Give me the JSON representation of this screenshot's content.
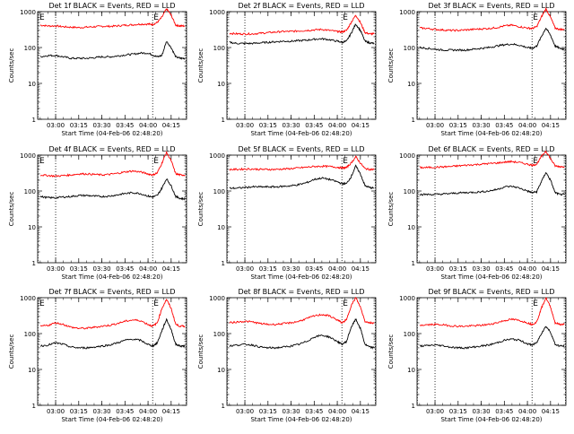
{
  "axis_common": {
    "ylabel": "Counts/sec",
    "xlabel": "Start Time (04-Feb-06 02:48:20)",
    "y_ticks": [
      "1",
      "10",
      "100",
      "1000"
    ],
    "x_ticks": [
      "03:00",
      "03:15",
      "03:30",
      "03:45",
      "04:00",
      "04:15"
    ],
    "ylim": [
      1,
      1000
    ],
    "y_scale": "log",
    "xlim": [
      "02:48:20",
      "04:25"
    ],
    "grid": false
  },
  "colors": {
    "events": "#000000",
    "lld": "#ff0000",
    "markers": "#000000"
  },
  "chart_data": [
    {
      "type": "line",
      "title": "Det 1f BLACK = Events, RED = LLD",
      "marker_labels": [
        "E",
        "E"
      ],
      "show_xaxis_labels": true,
      "x": [
        "02:50",
        "02:55",
        "03:00",
        "03:05",
        "03:10",
        "03:15",
        "03:20",
        "03:25",
        "03:30",
        "03:35",
        "03:40",
        "03:45",
        "03:50",
        "03:55",
        "04:00",
        "04:03",
        "04:06",
        "04:09",
        "04:12",
        "04:15",
        "04:18",
        "04:21",
        "04:24"
      ],
      "series": [
        {
          "name": "LLD",
          "color": "#ff0000",
          "values": [
            420,
            400,
            400,
            380,
            370,
            360,
            370,
            380,
            390,
            390,
            400,
            420,
            430,
            450,
            450,
            440,
            500,
            700,
            1200,
            800,
            420,
            400,
            400
          ]
        },
        {
          "name": "Events",
          "color": "#000000",
          "values": [
            55,
            60,
            60,
            55,
            50,
            50,
            50,
            52,
            55,
            55,
            58,
            62,
            65,
            70,
            70,
            62,
            55,
            60,
            150,
            100,
            55,
            50,
            50
          ]
        }
      ]
    },
    {
      "type": "line",
      "title": "Det 2f BLACK = Events, RED = LLD",
      "marker_labels": [
        "",
        "E"
      ],
      "show_xaxis_labels": true,
      "x": [
        "02:50",
        "02:55",
        "03:00",
        "03:05",
        "03:10",
        "03:15",
        "03:20",
        "03:25",
        "03:30",
        "03:35",
        "03:40",
        "03:45",
        "03:50",
        "03:55",
        "04:00",
        "04:03",
        "04:06",
        "04:09",
        "04:12",
        "04:15",
        "04:18",
        "04:21",
        "04:24"
      ],
      "series": [
        {
          "name": "LLD",
          "color": "#ff0000",
          "values": [
            250,
            240,
            240,
            240,
            250,
            260,
            270,
            280,
            280,
            290,
            300,
            310,
            320,
            300,
            280,
            270,
            300,
            500,
            800,
            500,
            260,
            240,
            240
          ]
        },
        {
          "name": "Events",
          "color": "#000000",
          "values": [
            140,
            130,
            130,
            130,
            135,
            140,
            145,
            150,
            150,
            155,
            160,
            170,
            175,
            165,
            150,
            140,
            150,
            250,
            450,
            300,
            150,
            135,
            130
          ]
        }
      ]
    },
    {
      "type": "line",
      "title": "Det 3f BLACK = Events, RED = LLD",
      "marker_labels": [
        "",
        "E"
      ],
      "show_xaxis_labels": true,
      "x": [
        "02:50",
        "02:55",
        "03:00",
        "03:05",
        "03:10",
        "03:15",
        "03:20",
        "03:25",
        "03:30",
        "03:35",
        "03:40",
        "03:45",
        "03:50",
        "03:55",
        "04:00",
        "04:03",
        "04:06",
        "04:09",
        "04:12",
        "04:15",
        "04:18",
        "04:21",
        "04:24"
      ],
      "series": [
        {
          "name": "LLD",
          "color": "#ff0000",
          "values": [
            350,
            340,
            320,
            310,
            300,
            300,
            310,
            320,
            330,
            340,
            360,
            400,
            420,
            380,
            350,
            340,
            380,
            700,
            1200,
            700,
            350,
            320,
            320
          ]
        },
        {
          "name": "Events",
          "color": "#000000",
          "values": [
            100,
            95,
            90,
            85,
            85,
            85,
            85,
            90,
            95,
            100,
            110,
            120,
            125,
            115,
            100,
            95,
            110,
            200,
            350,
            220,
            110,
            95,
            90
          ]
        }
      ]
    },
    {
      "type": "line",
      "title": "Det 4f BLACK = Events, RED = LLD",
      "marker_labels": [
        "E",
        "E"
      ],
      "show_xaxis_labels": true,
      "x": [
        "02:50",
        "02:55",
        "03:00",
        "03:05",
        "03:10",
        "03:15",
        "03:20",
        "03:25",
        "03:30",
        "03:35",
        "03:40",
        "03:45",
        "03:50",
        "03:55",
        "04:00",
        "04:03",
        "04:06",
        "04:09",
        "04:12",
        "04:15",
        "04:18",
        "04:21",
        "04:24"
      ],
      "series": [
        {
          "name": "LLD",
          "color": "#ff0000",
          "values": [
            280,
            270,
            260,
            270,
            280,
            300,
            300,
            290,
            280,
            290,
            310,
            340,
            360,
            340,
            300,
            280,
            320,
            600,
            1200,
            700,
            300,
            280,
            280
          ]
        },
        {
          "name": "Events",
          "color": "#000000",
          "values": [
            70,
            65,
            65,
            68,
            70,
            75,
            75,
            72,
            70,
            72,
            78,
            85,
            90,
            85,
            72,
            68,
            75,
            120,
            220,
            140,
            70,
            62,
            60
          ]
        }
      ]
    },
    {
      "type": "line",
      "title": "Det 5f BLACK = Events, RED = LLD",
      "marker_labels": [
        "",
        "E"
      ],
      "show_xaxis_labels": true,
      "x": [
        "02:50",
        "02:55",
        "03:00",
        "03:05",
        "03:10",
        "03:15",
        "03:20",
        "03:25",
        "03:30",
        "03:35",
        "03:40",
        "03:45",
        "03:50",
        "03:55",
        "04:00",
        "04:03",
        "04:06",
        "04:09",
        "04:12",
        "04:15",
        "04:18",
        "04:21",
        "04:24"
      ],
      "series": [
        {
          "name": "LLD",
          "color": "#ff0000",
          "values": [
            400,
            400,
            410,
            410,
            400,
            400,
            400,
            410,
            420,
            440,
            460,
            480,
            490,
            480,
            460,
            440,
            450,
            600,
            900,
            600,
            420,
            400,
            400
          ]
        },
        {
          "name": "Events",
          "color": "#000000",
          "values": [
            120,
            120,
            125,
            130,
            130,
            130,
            130,
            135,
            140,
            150,
            170,
            210,
            230,
            210,
            180,
            160,
            160,
            250,
            500,
            300,
            140,
            125,
            120
          ]
        }
      ]
    },
    {
      "type": "line",
      "title": "Det 6f BLACK = Events, RED = LLD",
      "marker_labels": [
        "",
        "E"
      ],
      "show_xaxis_labels": true,
      "x": [
        "02:50",
        "02:55",
        "03:00",
        "03:05",
        "03:10",
        "03:15",
        "03:20",
        "03:25",
        "03:30",
        "03:35",
        "03:40",
        "03:45",
        "03:50",
        "03:55",
        "04:00",
        "04:03",
        "04:06",
        "04:09",
        "04:12",
        "04:15",
        "04:18",
        "04:21",
        "04:24"
      ],
      "series": [
        {
          "name": "LLD",
          "color": "#ff0000",
          "values": [
            450,
            450,
            460,
            470,
            480,
            500,
            520,
            540,
            560,
            580,
            600,
            640,
            660,
            620,
            560,
            520,
            560,
            900,
            1300,
            800,
            500,
            480,
            480
          ]
        },
        {
          "name": "Events",
          "color": "#000000",
          "values": [
            80,
            80,
            80,
            82,
            85,
            88,
            90,
            92,
            95,
            100,
            110,
            130,
            135,
            120,
            100,
            90,
            95,
            180,
            330,
            200,
            90,
            80,
            80
          ]
        }
      ]
    },
    {
      "type": "line",
      "title": "Det 7f BLACK = Events, RED = LLD",
      "marker_labels": [
        "E",
        "E"
      ],
      "show_xaxis_labels": true,
      "x": [
        "02:50",
        "02:55",
        "03:00",
        "03:05",
        "03:10",
        "03:15",
        "03:20",
        "03:25",
        "03:30",
        "03:35",
        "03:40",
        "03:45",
        "03:50",
        "03:55",
        "04:00",
        "04:03",
        "04:06",
        "04:09",
        "04:12",
        "04:15",
        "04:18",
        "04:21",
        "04:24"
      ],
      "series": [
        {
          "name": "LLD",
          "color": "#ff0000",
          "values": [
            160,
            170,
            200,
            180,
            150,
            140,
            140,
            150,
            160,
            170,
            190,
            220,
            240,
            230,
            180,
            160,
            200,
            500,
            900,
            500,
            180,
            160,
            160
          ]
        },
        {
          "name": "Events",
          "color": "#000000",
          "values": [
            45,
            48,
            55,
            50,
            42,
            40,
            40,
            42,
            45,
            48,
            55,
            65,
            70,
            65,
            50,
            45,
            55,
            120,
            250,
            130,
            50,
            45,
            45
          ]
        }
      ]
    },
    {
      "type": "line",
      "title": "Det 8f BLACK = Events, RED = LLD",
      "marker_labels": [
        "",
        "E"
      ],
      "show_xaxis_labels": true,
      "x": [
        "02:50",
        "02:55",
        "03:00",
        "03:05",
        "03:10",
        "03:15",
        "03:20",
        "03:25",
        "03:30",
        "03:35",
        "03:40",
        "03:45",
        "03:50",
        "03:55",
        "04:00",
        "04:03",
        "04:06",
        "04:09",
        "04:12",
        "04:15",
        "04:18",
        "04:21",
        "04:24"
      ],
      "series": [
        {
          "name": "LLD",
          "color": "#ff0000",
          "values": [
            200,
            210,
            220,
            210,
            190,
            180,
            180,
            190,
            200,
            220,
            260,
            310,
            340,
            310,
            240,
            200,
            240,
            600,
            1000,
            550,
            220,
            200,
            200
          ]
        },
        {
          "name": "Events",
          "color": "#000000",
          "values": [
            45,
            48,
            50,
            48,
            42,
            40,
            40,
            42,
            45,
            50,
            60,
            80,
            90,
            80,
            60,
            50,
            60,
            150,
            250,
            140,
            50,
            42,
            40
          ]
        }
      ]
    },
    {
      "type": "line",
      "title": "Det 9f BLACK = Events, RED = LLD",
      "marker_labels": [
        "",
        "E"
      ],
      "show_xaxis_labels": true,
      "x": [
        "02:50",
        "02:55",
        "03:00",
        "03:05",
        "03:10",
        "03:15",
        "03:20",
        "03:25",
        "03:30",
        "03:35",
        "03:40",
        "03:45",
        "03:50",
        "03:55",
        "04:00",
        "04:03",
        "04:06",
        "04:09",
        "04:12",
        "04:15",
        "04:18",
        "04:21",
        "04:24"
      ],
      "series": [
        {
          "name": "LLD",
          "color": "#ff0000",
          "values": [
            170,
            175,
            180,
            175,
            165,
            160,
            160,
            165,
            170,
            180,
            200,
            230,
            250,
            230,
            200,
            180,
            210,
            500,
            1000,
            550,
            200,
            180,
            180
          ]
        },
        {
          "name": "Events",
          "color": "#000000",
          "values": [
            45,
            46,
            48,
            46,
            42,
            40,
            40,
            42,
            45,
            48,
            55,
            65,
            70,
            65,
            52,
            48,
            55,
            100,
            160,
            110,
            50,
            45,
            45
          ]
        }
      ]
    }
  ]
}
